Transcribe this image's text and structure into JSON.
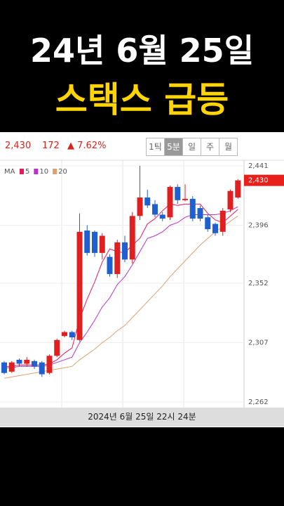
{
  "header": {
    "line1": "24년 6월 25일",
    "line2": "스택스 급등"
  },
  "quote": {
    "price": "2,430",
    "change": "172",
    "change_pct": "▲ 7.62%"
  },
  "tabs": [
    "1틱",
    "5분",
    "일",
    "주",
    "월"
  ],
  "footer": "2024년 6월 25일 22시 24분",
  "chart_data": {
    "type": "candlestick",
    "legend_title": "MA",
    "ylim": [
      2262,
      2441
    ],
    "yticks": [
      {
        "value": 2441,
        "label": "2,441"
      },
      {
        "value": 2396,
        "label": "2,396"
      },
      {
        "value": 2352,
        "label": "2,352"
      },
      {
        "value": 2307,
        "label": "2,307"
      },
      {
        "value": 2262,
        "label": "2,262"
      }
    ],
    "current_price": {
      "value": 2430,
      "label": "2,430",
      "color": "#e8201c"
    },
    "up_color": "#e02020",
    "down_color": "#1f5fcf",
    "open": [
      2292,
      2285,
      2294,
      2291,
      2293,
      2292,
      2284,
      2297,
      2312,
      2315,
      2309,
      2392,
      2391,
      2375,
      2372,
      2359,
      2383,
      2370,
      2403,
      2417,
      2412,
      2404,
      2402,
      2425,
      2415,
      2416,
      2409,
      2402,
      2397,
      2391,
      2408,
      2417
    ],
    "high": [
      2293,
      2293,
      2295,
      2296,
      2294,
      2293,
      2298,
      2310,
      2316,
      2316,
      2405,
      2396,
      2392,
      2390,
      2374,
      2385,
      2388,
      2406,
      2441,
      2423,
      2415,
      2406,
      2426,
      2427,
      2427,
      2418,
      2411,
      2404,
      2398,
      2409,
      2423,
      2431
    ],
    "low": [
      2283,
      2284,
      2289,
      2289,
      2287,
      2281,
      2283,
      2296,
      2311,
      2309,
      2308,
      2373,
      2372,
      2370,
      2357,
      2356,
      2368,
      2367,
      2400,
      2409,
      2402,
      2399,
      2400,
      2412,
      2414,
      2399,
      2399,
      2391,
      2388,
      2388,
      2406,
      2416
    ],
    "close": [
      2284,
      2292,
      2291,
      2294,
      2289,
      2283,
      2297,
      2309,
      2315,
      2311,
      2391,
      2375,
      2375,
      2388,
      2359,
      2383,
      2370,
      2403,
      2417,
      2411,
      2404,
      2401,
      2425,
      2415,
      2416,
      2401,
      2401,
      2393,
      2390,
      2407,
      2422,
      2430
    ],
    "series": [
      {
        "name": "5",
        "color": "#e8195a",
        "values": [
          2289,
          2289,
          2290,
          2290,
          2290,
          2290,
          2291,
          2294,
          2299,
          2303,
          2325,
          2340,
          2353,
          2368,
          2378,
          2376,
          2375,
          2381,
          2386,
          2397,
          2401,
          2407,
          2412,
          2411,
          2412,
          2412,
          2412,
          2405,
          2400,
          2398,
          2403,
          2408
        ]
      },
      {
        "name": "10",
        "color": "#b832c8",
        "values": [
          2288,
          2288,
          2289,
          2289,
          2289,
          2289,
          2290,
          2292,
          2294,
          2296,
          2307,
          2315,
          2324,
          2334,
          2341,
          2351,
          2357,
          2366,
          2376,
          2386,
          2388,
          2391,
          2396,
          2398,
          2402,
          2404,
          2404,
          2404,
          2404,
          2405,
          2407,
          2410
        ]
      },
      {
        "name": "20",
        "color": "#e0a070",
        "values": [
          2280,
          2281,
          2282,
          2283,
          2284,
          2285,
          2286,
          2287,
          2288,
          2289,
          2294,
          2298,
          2302,
          2307,
          2311,
          2316,
          2320,
          2326,
          2332,
          2338,
          2344,
          2350,
          2357,
          2363,
          2369,
          2375,
          2381,
          2386,
          2391,
          2395,
          2399,
          2403
        ]
      }
    ]
  }
}
